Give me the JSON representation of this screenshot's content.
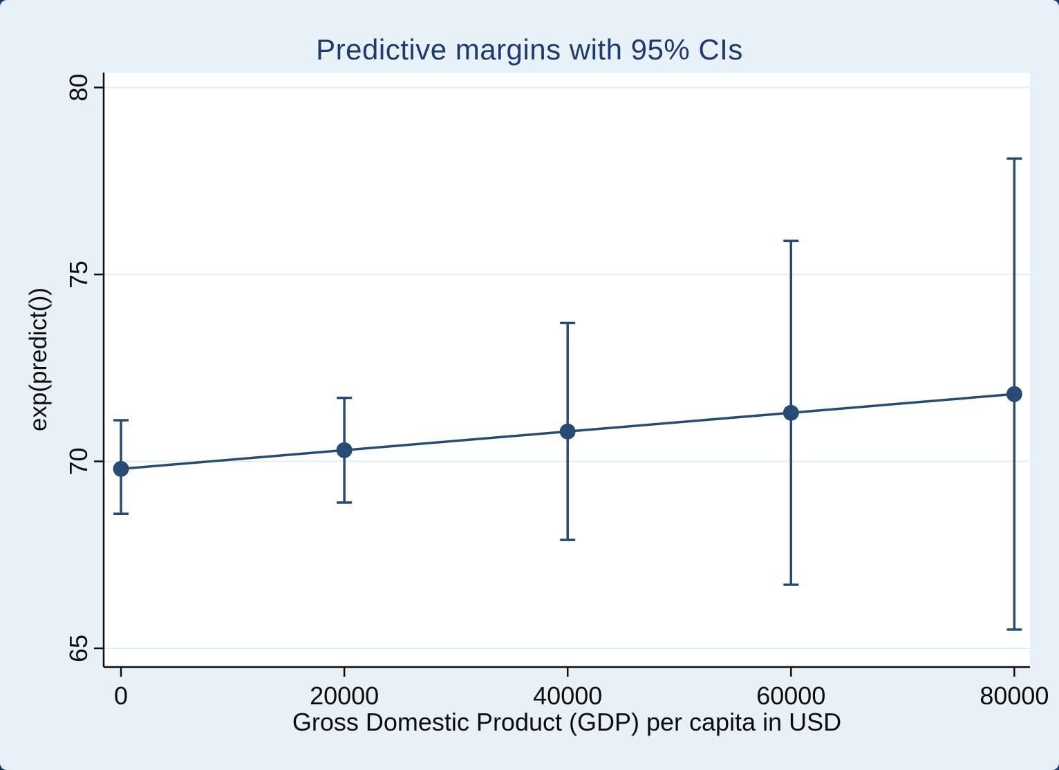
{
  "window": {
    "background_color": "#17386b",
    "canvas_color": "#e8f1f7"
  },
  "chart_data": {
    "type": "line",
    "title": "Predictive margins with 95% CIs",
    "xlabel": "Gross Domestic Product (GDP) per capita in USD",
    "ylabel": "exp(predict())",
    "x": [
      0,
      20000,
      40000,
      60000,
      80000
    ],
    "series": [
      {
        "name": "Predictive margin",
        "values": [
          69.8,
          70.3,
          70.8,
          71.3,
          71.8
        ]
      }
    ],
    "ci_lower": [
      68.6,
      68.9,
      67.9,
      66.7,
      65.5
    ],
    "ci_upper": [
      71.1,
      71.7,
      73.7,
      75.9,
      78.1
    ],
    "xlim": [
      -1550,
      81400
    ],
    "ylim": [
      64.5,
      80.4
    ],
    "xticks": [
      0,
      20000,
      40000,
      60000,
      80000
    ],
    "xtick_labels": [
      "0",
      "20000",
      "40000",
      "60000",
      "80000"
    ],
    "yticks": [
      65,
      70,
      75,
      80
    ],
    "ytick_labels": [
      "65",
      "70",
      "75",
      "80"
    ],
    "grid": "horizontal",
    "legend": "none",
    "colors": {
      "accent": "#274b72",
      "plot_background": "#ffffff",
      "grid": "#e3edf6",
      "axis": "#0d0d0d",
      "title": "#1e3a6e"
    }
  }
}
